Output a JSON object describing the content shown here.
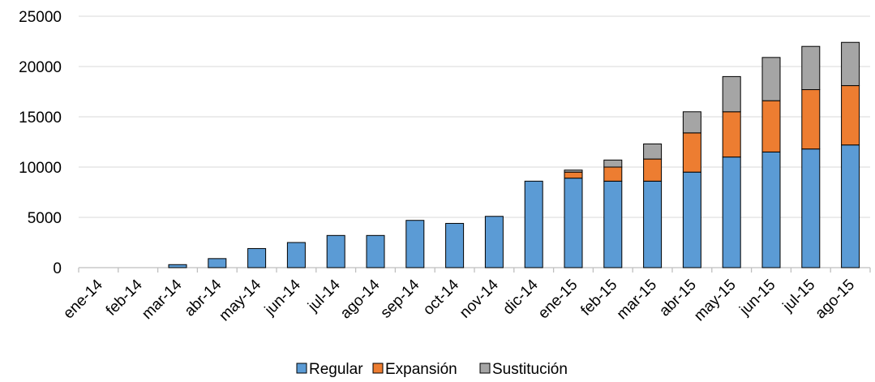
{
  "chart_data": {
    "type": "bar",
    "stacked": true,
    "title": "",
    "xlabel": "",
    "ylabel": "",
    "ylim": [
      0,
      25000
    ],
    "yticks": [
      0,
      5000,
      10000,
      15000,
      20000,
      25000
    ],
    "grid": true,
    "legend_position": "bottom",
    "categories": [
      "ene-14",
      "feb-14",
      "mar-14",
      "abr-14",
      "may-14",
      "jun-14",
      "jul-14",
      "ago-14",
      "sep-14",
      "oct-14",
      "nov-14",
      "dic-14",
      "ene-15",
      "feb-15",
      "mar-15",
      "abr-15",
      "may-15",
      "jun-15",
      "jul-15",
      "ago-15"
    ],
    "series": [
      {
        "name": "Regular",
        "color": "#5b9bd5",
        "values": [
          0,
          0,
          300,
          900,
          1900,
          2500,
          3200,
          3200,
          4700,
          4400,
          5100,
          8600,
          8900,
          8600,
          8600,
          9500,
          11000,
          11500,
          11800,
          12200
        ]
      },
      {
        "name": "Expansión",
        "color": "#ed7d31",
        "values": [
          0,
          0,
          0,
          0,
          0,
          0,
          0,
          0,
          0,
          0,
          0,
          0,
          600,
          1400,
          2200,
          3900,
          4500,
          5100,
          5900,
          5900
        ]
      },
      {
        "name": "Sustitución",
        "color": "#a5a5a5",
        "values": [
          0,
          0,
          0,
          0,
          0,
          0,
          0,
          0,
          0,
          0,
          0,
          0,
          200,
          700,
          1500,
          2100,
          3500,
          4300,
          4300,
          4300
        ]
      }
    ]
  }
}
